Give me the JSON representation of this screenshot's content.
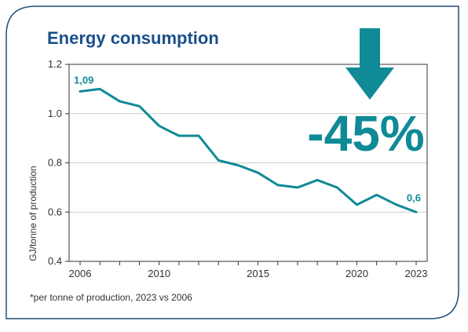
{
  "colors": {
    "accent": "#0f8a96",
    "title": "#1a4f8a",
    "frame": "#1f4e7a",
    "axis": "#333333",
    "grid": "#cfcfcf"
  },
  "icon": "arrow-down-icon",
  "chart_data": {
    "type": "line",
    "title": "Energy consumption",
    "ylabel": "GJ/tonne of production",
    "xlabel": "",
    "ylim": [
      0.4,
      1.2
    ],
    "xlim": [
      2006,
      2023
    ],
    "y_ticks": [
      "1.2",
      "1.0",
      "0.8",
      "0.6",
      "0.4"
    ],
    "y_tick_values": [
      1.2,
      1.0,
      0.8,
      0.6,
      0.4
    ],
    "x_ticks": [
      "2006",
      "2010",
      "2015",
      "2020",
      "2023"
    ],
    "x_tick_values": [
      2006,
      2010,
      2015,
      2020,
      2023
    ],
    "grid": true,
    "series": [
      {
        "x": [
          2006,
          2007,
          2008,
          2009,
          2010,
          2011,
          2012,
          2013,
          2014,
          2015,
          2016,
          2017,
          2018,
          2019,
          2020,
          2021,
          2022,
          2023
        ],
        "values": [
          1.09,
          1.1,
          1.05,
          1.03,
          0.95,
          0.91,
          0.91,
          0.81,
          0.79,
          0.76,
          0.71,
          0.7,
          0.73,
          0.7,
          0.63,
          0.67,
          0.63,
          0.6
        ]
      }
    ],
    "annotations": {
      "start_label": "1,09",
      "end_label": "0,6",
      "change": "-45%"
    },
    "footnote": "*per tonne of production, 2023 vs 2006"
  }
}
